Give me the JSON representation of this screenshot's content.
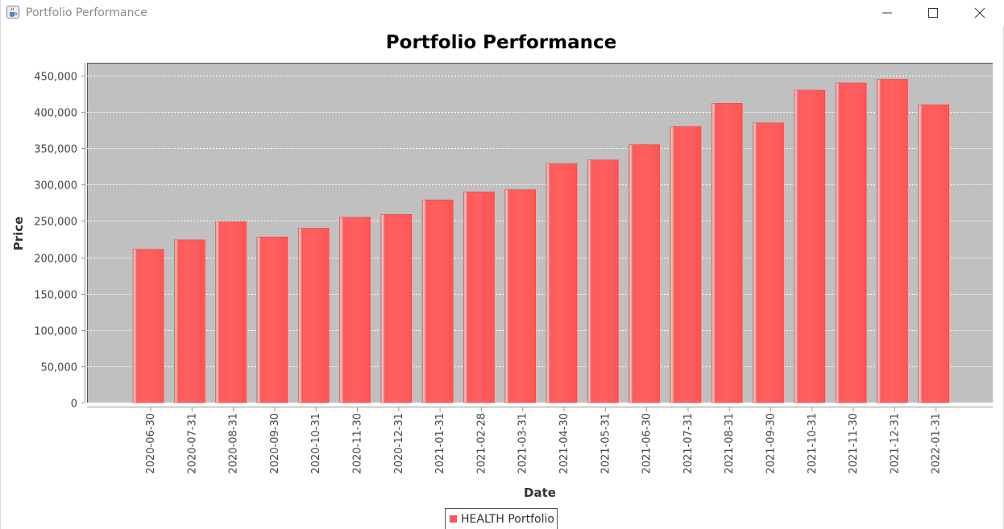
{
  "window": {
    "title": "Portfolio Performance",
    "icon": "java-cup-icon",
    "controls": [
      "minimize-icon",
      "maximize-icon",
      "close-icon"
    ]
  },
  "chart_data": {
    "type": "bar",
    "title": "Portfolio Performance",
    "xlabel": "Date",
    "ylabel": "Price",
    "categories": [
      "2020-06-30",
      "2020-07-31",
      "2020-08-31",
      "2020-09-30",
      "2020-10-31",
      "2020-11-30",
      "2020-12-31",
      "2021-01-31",
      "2021-02-28",
      "2021-03-31",
      "2021-04-30",
      "2021-05-31",
      "2021-06-30",
      "2021-07-31",
      "2021-08-31",
      "2021-09-30",
      "2021-10-31",
      "2021-11-30",
      "2021-12-31",
      "2022-01-31"
    ],
    "series": [
      {
        "name": "HEALTH Portfolio",
        "values": [
          211000,
          224000,
          249000,
          228000,
          240000,
          255000,
          259000,
          279000,
          290000,
          293000,
          329000,
          334000,
          355000,
          380000,
          412000,
          385000,
          430000,
          440000,
          445000,
          410000
        ]
      }
    ],
    "ylim": [
      0,
      450000
    ],
    "yticks": [
      0,
      50000,
      100000,
      150000,
      200000,
      250000,
      300000,
      350000,
      400000,
      450000
    ],
    "ytick_labels": [
      "0",
      "50,000",
      "100,000",
      "150,000",
      "200,000",
      "250,000",
      "300,000",
      "350,000",
      "400,000",
      "450,000"
    ],
    "grid": true,
    "legend": "bottom-center",
    "colors": {
      "bar": "#ff5555",
      "plot_background": "#c0c0c0",
      "gridline": "#ffffff"
    }
  }
}
